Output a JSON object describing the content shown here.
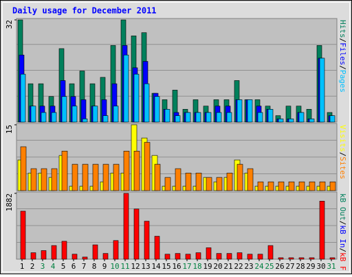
{
  "legend_separator": "/",
  "chart_data": [
    {
      "type": "bar",
      "title": "Daily usage for December 2011",
      "categories": [
        "1",
        "2",
        "3",
        "4",
        "5",
        "6",
        "7",
        "8",
        "9",
        "10",
        "11",
        "12",
        "13",
        "14",
        "15",
        "16",
        "17",
        "18",
        "19",
        "20",
        "21",
        "22",
        "23",
        "24",
        "25",
        "26",
        "27",
        "28",
        "29",
        "30",
        "31"
      ],
      "category_colors": [
        "#000000",
        "#000000",
        "#008040",
        "#008040",
        "#000000",
        "#000000",
        "#000000",
        "#000000",
        "#000000",
        "#008040",
        "#008040",
        "#000000",
        "#000000",
        "#000000",
        "#000000",
        "#000000",
        "#008040",
        "#008040",
        "#000000",
        "#000000",
        "#000000",
        "#000000",
        "#000000",
        "#008040",
        "#008040",
        "#000000",
        "#000000",
        "#000000",
        "#000000",
        "#000000",
        "#008040"
      ],
      "ylim": [
        0,
        32
      ],
      "yticks": [
        32
      ],
      "series": [
        {
          "name": "Hits",
          "color": "#00805c",
          "values": [
            32,
            12,
            12,
            8,
            23,
            12,
            16,
            12,
            14,
            24,
            32,
            27,
            28,
            9,
            7,
            10,
            4,
            7,
            5,
            7,
            7,
            13,
            7,
            7,
            5,
            2,
            5,
            5,
            4,
            24,
            3
          ]
        },
        {
          "name": "Files",
          "color": "#0000ff",
          "values": [
            21,
            5,
            5,
            5,
            13,
            8,
            7,
            5,
            7,
            12,
            24,
            17,
            19,
            9,
            4,
            3,
            3,
            3,
            3,
            5,
            5,
            7,
            7,
            5,
            4,
            1,
            1,
            3,
            1,
            20,
            2
          ]
        },
        {
          "name": "Pages",
          "color": "#00c0ff",
          "values": [
            15,
            5,
            3,
            3,
            8,
            5,
            1,
            5,
            2,
            5,
            21,
            15,
            12,
            8,
            4,
            2,
            3,
            3,
            3,
            3,
            3,
            7,
            7,
            3,
            4,
            1,
            1,
            3,
            1,
            20,
            2
          ]
        }
      ]
    },
    {
      "type": "bar",
      "ylim": [
        0,
        15
      ],
      "yticks": [
        15
      ],
      "series": [
        {
          "name": "Visits",
          "color": "#ffff00",
          "values": [
            7,
            4,
            4,
            3,
            8,
            1,
            1,
            1,
            2,
            4,
            4,
            15,
            12,
            8,
            1,
            1,
            1,
            1,
            3,
            2,
            3,
            7,
            4,
            1,
            1,
            1,
            1,
            1,
            1,
            1,
            1
          ]
        },
        {
          "name": "Sites",
          "color": "#ff8000",
          "values": [
            10,
            5,
            5,
            5,
            9,
            6,
            6,
            6,
            6,
            6,
            9,
            9,
            11,
            6,
            3,
            5,
            4,
            4,
            3,
            3,
            4,
            6,
            5,
            2,
            2,
            2,
            2,
            2,
            2,
            2,
            2
          ]
        }
      ]
    },
    {
      "type": "bar",
      "ylim": [
        0,
        1882
      ],
      "yticks": [
        1882
      ],
      "series": [
        {
          "name": "kB Out",
          "color": "#00805c",
          "values": [
            0,
            0,
            0,
            0,
            0,
            0,
            0,
            0,
            0,
            0,
            0,
            0,
            0,
            0,
            0,
            0,
            0,
            0,
            0,
            0,
            0,
            0,
            0,
            0,
            0,
            0,
            0,
            0,
            0,
            0,
            0
          ]
        },
        {
          "name": "kB In",
          "color": "#0000ff",
          "values": [
            0,
            0,
            0,
            0,
            0,
            0,
            0,
            0,
            0,
            0,
            0,
            0,
            0,
            0,
            0,
            0,
            0,
            0,
            0,
            0,
            0,
            0,
            0,
            0,
            0,
            0,
            0,
            0,
            0,
            0,
            0
          ]
        },
        {
          "name": "kB F",
          "color": "#ff0000",
          "values": [
            1373,
            185,
            246,
            390,
            512,
            143,
            61,
            410,
            164,
            533,
            1882,
            1435,
            1086,
            656,
            143,
            164,
            143,
            185,
            328,
            164,
            164,
            185,
            143,
            143,
            390,
            41,
            41,
            41,
            41,
            1660,
            41
          ]
        }
      ]
    }
  ]
}
